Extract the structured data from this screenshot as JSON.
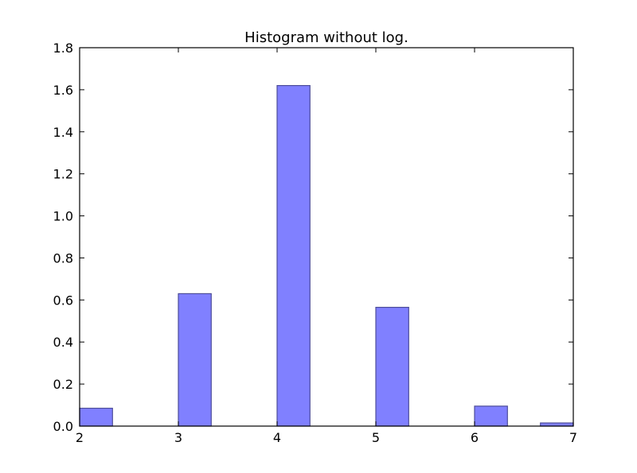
{
  "chart_data": {
    "type": "bar",
    "title": "Histogram without log.",
    "xlabel": "",
    "ylabel": "",
    "xlim": [
      2,
      7
    ],
    "ylim": [
      0,
      1.8
    ],
    "x_ticks": [
      "2",
      "3",
      "4",
      "5",
      "6",
      "7"
    ],
    "y_ticks": [
      "0.0",
      "0.2",
      "0.4",
      "0.6",
      "0.8",
      "1.0",
      "1.2",
      "1.4",
      "1.6",
      "1.8"
    ],
    "grid": false,
    "bar_color": "#8080ff",
    "bar_edge_color": "#4d4d99",
    "bins": [
      {
        "x0": 2.0,
        "x1": 2.333,
        "value": 0.085
      },
      {
        "x0": 3.0,
        "x1": 3.333,
        "value": 0.63
      },
      {
        "x0": 4.0,
        "x1": 4.333,
        "value": 1.62
      },
      {
        "x0": 5.0,
        "x1": 5.333,
        "value": 0.565
      },
      {
        "x0": 6.0,
        "x1": 6.333,
        "value": 0.095
      },
      {
        "x0": 6.667,
        "x1": 7.0,
        "value": 0.015
      }
    ]
  }
}
